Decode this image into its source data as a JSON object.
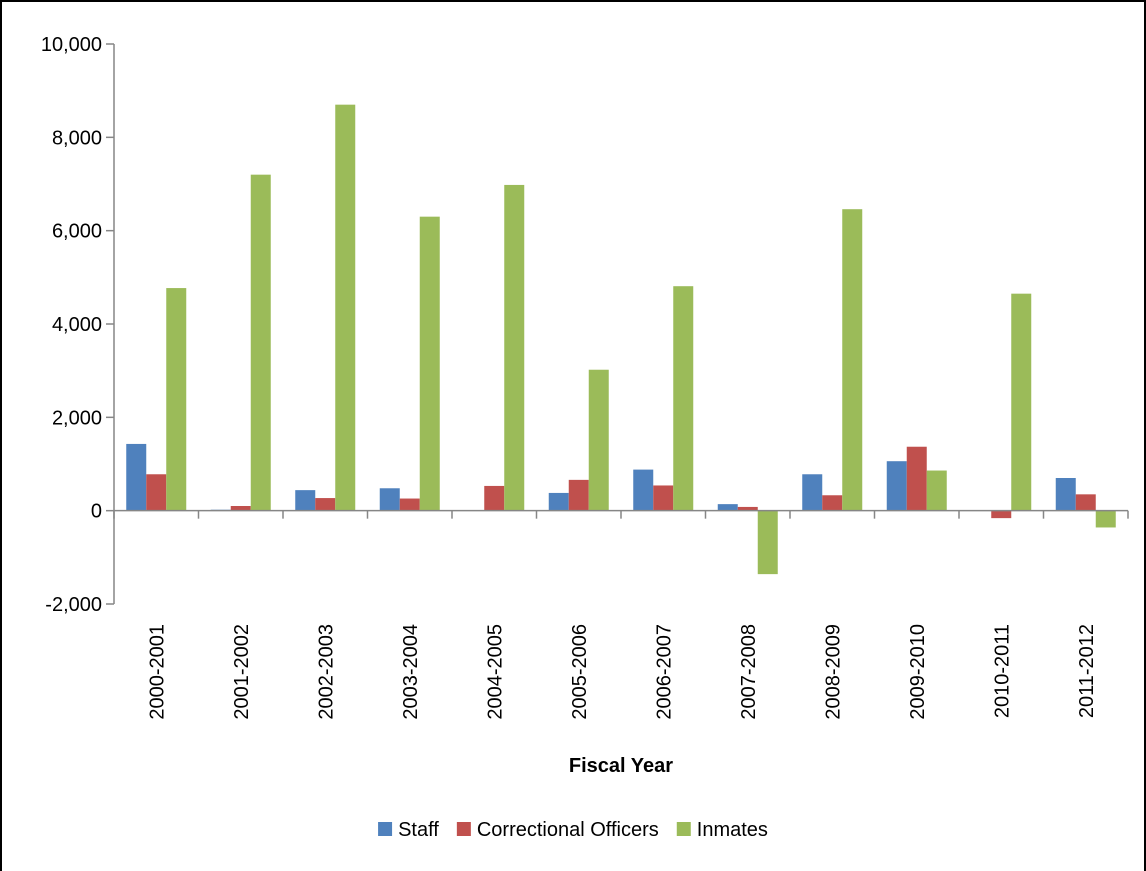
{
  "chart_data": {
    "type": "bar",
    "title": "",
    "xlabel": "Fiscal Year",
    "ylabel": "",
    "ylim": [
      -2000,
      10000
    ],
    "yticks": [
      -2000,
      0,
      2000,
      4000,
      6000,
      8000,
      10000
    ],
    "ytick_labels": [
      "-2,000",
      "0",
      "2,000",
      "4,000",
      "6,000",
      "8,000",
      "10,000"
    ],
    "grid": false,
    "legend_position": "bottom",
    "categories": [
      "2000-2001",
      "2001-2002",
      "2002-2003",
      "2003-2004",
      "2004-2005",
      "2005-2006",
      "2006-2007",
      "2007-2008",
      "2008-2009",
      "2009-2010",
      "2010-2011",
      "2011-2012"
    ],
    "series": [
      {
        "name": "Staff",
        "color": "#4F81BD",
        "values": [
          1430,
          20,
          440,
          480,
          0,
          380,
          880,
          140,
          780,
          1060,
          0,
          700
        ]
      },
      {
        "name": "Correctional Officers",
        "color": "#C0504D",
        "values": [
          780,
          100,
          270,
          260,
          530,
          660,
          540,
          80,
          330,
          1370,
          -160,
          350
        ]
      },
      {
        "name": "Inmates",
        "color": "#9BBB59",
        "values": [
          4770,
          7200,
          8700,
          6300,
          6980,
          3020,
          4810,
          -1360,
          6460,
          860,
          4650,
          -360
        ]
      }
    ]
  }
}
